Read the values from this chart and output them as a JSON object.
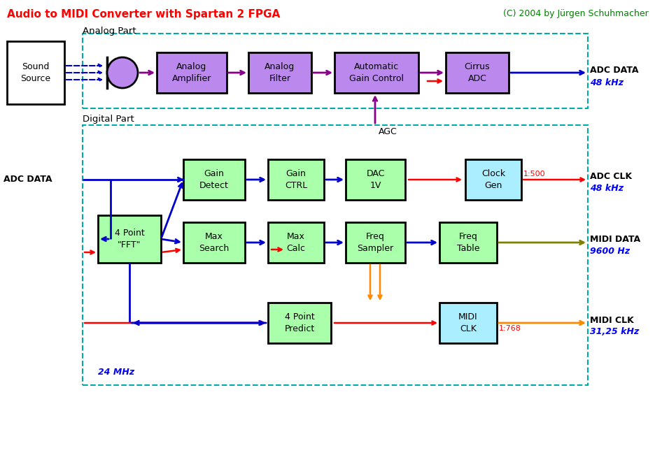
{
  "title": "Audio to MIDI Converter with Spartan 2 FPGA",
  "copyright": "(C) 2004 by Jürgen Schuhmacher",
  "title_color": "#FF0000",
  "copyright_color": "#008000",
  "bg_color": "#FFFFFF",
  "analog_label": "Analog Part",
  "digital_label": "Digital Part",
  "analog_box_color": "#BB88EE",
  "green_box_color": "#AAFFAA",
  "cyan_box_color": "#AAEEFF",
  "white_box_color": "#FFFFFF",
  "box_edge": "#000000",
  "dashed_border_color": "#00AAAA",
  "purple_arrow": "#880088",
  "blue_arrow": "#0000CC",
  "red_arrow": "#FF0000",
  "orange_arrow": "#FF8800",
  "olive_arrow": "#808000",
  "note_blue": "#0000FF",
  "agc_label": "AGC",
  "mhz_label": "24 MHz",
  "adc_data_out_label": "ADC DATA",
  "adc_data_freq": "48 kHz",
  "adc_clk_label": "ADC CLK",
  "adc_clk_freq": "48 kHz",
  "adc_clk_ratio": "1:500",
  "midi_data_label": "MIDI DATA",
  "midi_data_freq": "9600 Hz",
  "midi_clk_label": "MIDI CLK",
  "midi_clk_freq": "31,25 kHz",
  "midi_clk_ratio": "1:768"
}
